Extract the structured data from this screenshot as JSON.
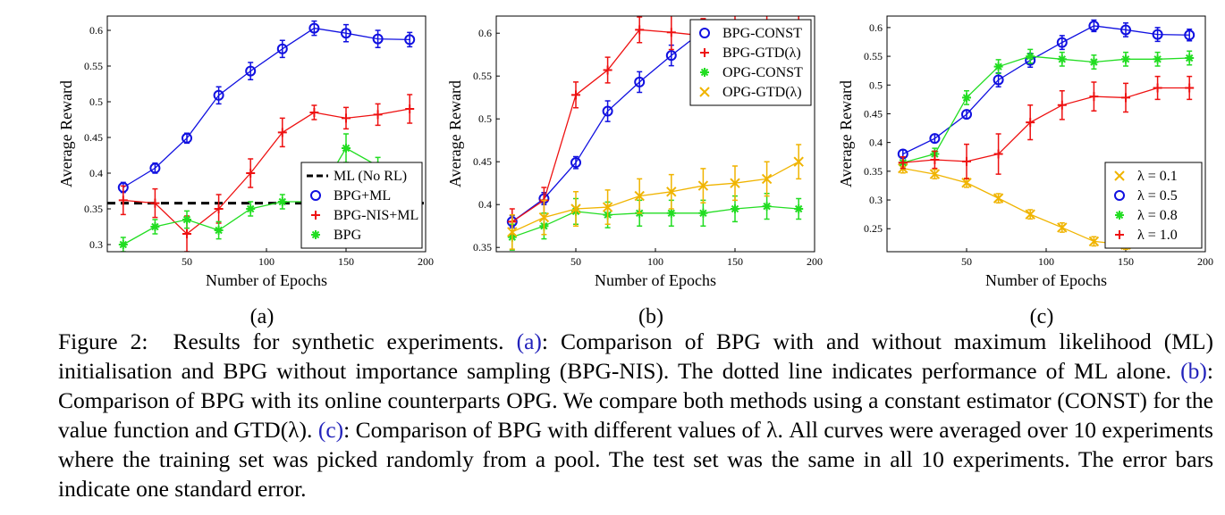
{
  "chart_data": [
    {
      "type": "line",
      "label": "(a)",
      "xlabel": "Number of Epochs",
      "ylabel": "Average Reward",
      "xlim": [
        0,
        200
      ],
      "xticks": [
        50,
        100,
        150,
        200
      ],
      "ylim": [
        0.29,
        0.62
      ],
      "yticks": [
        0.3,
        0.35,
        0.4,
        0.45,
        0.5,
        0.55,
        0.6
      ],
      "legend": "lower right",
      "series": [
        {
          "name": "ML (No RL)",
          "color": "#000000",
          "linestyle": "dashed",
          "x": [
            0,
            200
          ],
          "values": [
            0.358,
            0.358
          ]
        },
        {
          "name": "BPG+ML",
          "color": "#1010e0",
          "marker": "o",
          "x": [
            10,
            30,
            50,
            70,
            90,
            110,
            130,
            150,
            170,
            190
          ],
          "values": [
            0.38,
            0.407,
            0.449,
            0.509,
            0.543,
            0.574,
            0.603,
            0.596,
            0.588,
            0.587
          ],
          "errors": [
            0.007,
            0.007,
            0.007,
            0.012,
            0.012,
            0.012,
            0.01,
            0.012,
            0.012,
            0.01
          ]
        },
        {
          "name": "BPG-NIS+ML",
          "color": "#ee1111",
          "marker": "+",
          "x": [
            10,
            30,
            50,
            70,
            90,
            110,
            130,
            150,
            170,
            190
          ],
          "values": [
            0.362,
            0.358,
            0.315,
            0.35,
            0.4,
            0.457,
            0.485,
            0.477,
            0.482,
            0.49
          ],
          "errors": [
            0.02,
            0.02,
            0.025,
            0.02,
            0.02,
            0.02,
            0.01,
            0.015,
            0.015,
            0.02
          ]
        },
        {
          "name": "BPG",
          "color": "#22dd22",
          "marker": "*",
          "x": [
            10,
            30,
            50,
            70,
            90,
            110,
            130,
            150,
            170,
            190
          ],
          "values": [
            0.3,
            0.325,
            0.335,
            0.32,
            0.35,
            0.36,
            0.36,
            0.435,
            0.41,
            0.4
          ],
          "errors": [
            0.01,
            0.01,
            0.012,
            0.012,
            0.01,
            0.01,
            0.01,
            0.02,
            0.012,
            0.012
          ]
        }
      ]
    },
    {
      "type": "line",
      "label": "(b)",
      "xlabel": "Number of Epochs",
      "ylabel": "Average Reward",
      "xlim": [
        0,
        200
      ],
      "xticks": [
        50,
        100,
        150,
        200
      ],
      "ylim": [
        0.345,
        0.62
      ],
      "yticks": [
        0.35,
        0.4,
        0.45,
        0.5,
        0.55,
        0.6
      ],
      "legend": "upper right",
      "series": [
        {
          "name": "BPG-CONST",
          "color": "#1010e0",
          "marker": "o",
          "x": [
            10,
            30,
            50,
            70,
            90,
            110,
            130,
            150,
            170,
            190
          ],
          "values": [
            0.38,
            0.407,
            0.449,
            0.509,
            0.543,
            0.574,
            0.603,
            0.596,
            0.588,
            0.587
          ],
          "errors": [
            0.007,
            0.007,
            0.007,
            0.012,
            0.012,
            0.012,
            0.01,
            0.012,
            0.012,
            0.01
          ]
        },
        {
          "name": "BPG-GTD(λ)",
          "color": "#ee1111",
          "marker": "+",
          "x": [
            10,
            30,
            50,
            70,
            90,
            110,
            130,
            150,
            170,
            190
          ],
          "values": [
            0.38,
            0.405,
            0.528,
            0.557,
            0.604,
            0.601,
            0.597,
            0.596,
            0.6,
            0.603
          ],
          "errors": [
            0.015,
            0.015,
            0.015,
            0.015,
            0.015,
            0.02,
            0.02,
            0.025,
            0.025,
            0.02
          ]
        },
        {
          "name": "OPG-CONST",
          "color": "#22dd22",
          "marker": "*",
          "x": [
            10,
            30,
            50,
            70,
            90,
            110,
            130,
            150,
            170,
            190
          ],
          "values": [
            0.362,
            0.375,
            0.392,
            0.388,
            0.39,
            0.39,
            0.39,
            0.395,
            0.398,
            0.395
          ],
          "errors": [
            0.015,
            0.015,
            0.015,
            0.015,
            0.015,
            0.015,
            0.015,
            0.015,
            0.015,
            0.012
          ]
        },
        {
          "name": "OPG-GTD(λ)",
          "color": "#f0b400",
          "marker": "x",
          "x": [
            10,
            30,
            50,
            70,
            90,
            110,
            130,
            150,
            170,
            190
          ],
          "values": [
            0.368,
            0.385,
            0.395,
            0.397,
            0.41,
            0.415,
            0.422,
            0.425,
            0.43,
            0.45
          ],
          "errors": [
            0.02,
            0.02,
            0.02,
            0.02,
            0.02,
            0.02,
            0.02,
            0.02,
            0.02,
            0.02
          ]
        }
      ]
    },
    {
      "type": "line",
      "label": "(c)",
      "xlabel": "Number of Epochs",
      "ylabel": "Average Reward",
      "xlim": [
        0,
        200
      ],
      "xticks": [
        50,
        100,
        150,
        200
      ],
      "ylim": [
        0.21,
        0.62
      ],
      "yticks": [
        0.25,
        0.3,
        0.35,
        0.4,
        0.45,
        0.5,
        0.55,
        0.6
      ],
      "legend": "lower right",
      "series": [
        {
          "name": "λ = 0.1",
          "color": "#f0b400",
          "marker": "x",
          "x": [
            10,
            30,
            50,
            70,
            90,
            110,
            130,
            150
          ],
          "values": [
            0.355,
            0.345,
            0.33,
            0.303,
            0.275,
            0.252,
            0.228,
            0.222
          ],
          "errors": [
            0.008,
            0.008,
            0.008,
            0.008,
            0.008,
            0.008,
            0.008,
            0.008
          ]
        },
        {
          "name": "λ = 0.5",
          "color": "#1010e0",
          "marker": "o",
          "x": [
            10,
            30,
            50,
            70,
            90,
            110,
            130,
            150,
            170,
            190
          ],
          "values": [
            0.38,
            0.407,
            0.449,
            0.509,
            0.543,
            0.574,
            0.603,
            0.596,
            0.588,
            0.587
          ],
          "errors": [
            0.007,
            0.007,
            0.007,
            0.012,
            0.012,
            0.012,
            0.01,
            0.012,
            0.012,
            0.01
          ]
        },
        {
          "name": "λ = 0.8",
          "color": "#22dd22",
          "marker": "*",
          "x": [
            10,
            30,
            50,
            70,
            90,
            110,
            130,
            150,
            170,
            190
          ],
          "values": [
            0.365,
            0.38,
            0.478,
            0.532,
            0.55,
            0.545,
            0.54,
            0.545,
            0.545,
            0.547
          ],
          "errors": [
            0.01,
            0.01,
            0.012,
            0.012,
            0.012,
            0.012,
            0.012,
            0.012,
            0.012,
            0.012
          ]
        },
        {
          "name": "λ = 1.0",
          "color": "#ee1111",
          "marker": "+",
          "x": [
            10,
            30,
            50,
            70,
            90,
            110,
            130,
            150,
            170,
            190
          ],
          "values": [
            0.365,
            0.37,
            0.367,
            0.38,
            0.435,
            0.465,
            0.48,
            0.478,
            0.495,
            0.495
          ],
          "errors": [
            0.01,
            0.015,
            0.03,
            0.035,
            0.03,
            0.025,
            0.025,
            0.025,
            0.02,
            0.02
          ]
        }
      ]
    }
  ],
  "caption": {
    "label": "Figure 2:",
    "parts": [
      "Results for synthetic experiments.",
      "(a)",
      ": Comparison of BPG with and without maximum likelihood (ML) initialisation and BPG without importance sampling (BPG-NIS). The dotted line indicates performance of ML alone.",
      "(b)",
      ": Comparison of BPG with its online counterparts OPG. We compare both methods using a constant estimator (CONST) for the value function and GTD(λ).",
      "(c)",
      ": Comparison of BPG with different values of λ. All curves were averaged over 10 experiments where the training set was picked randomly from a pool. The test set was the same in all 10 experiments. The error bars indicate one standard error."
    ]
  }
}
